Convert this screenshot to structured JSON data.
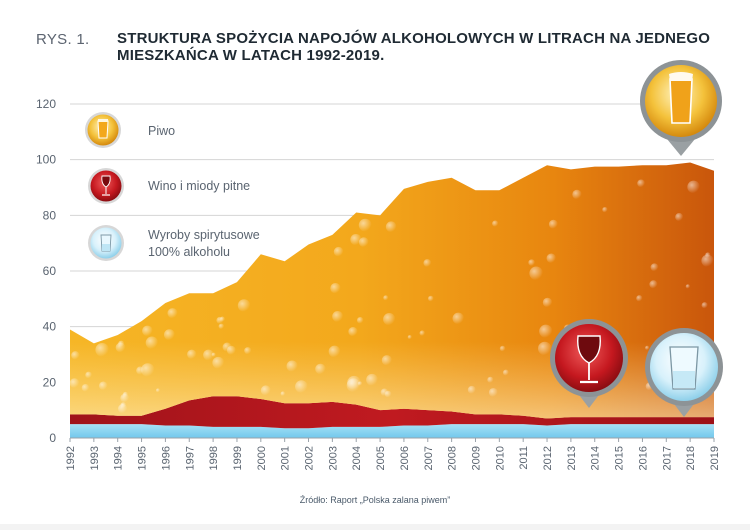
{
  "figure_label": "RYS. 1.",
  "title": {
    "line1": "STRUKTURA SPOŻYCIA NAPOJÓW ALKOHOLOWYCH W LITRACH NA JEDNEGO",
    "line2": "MIESZKAŃCA W LATACH 1992-2019."
  },
  "legend": [
    {
      "lines": [
        "Piwo"
      ],
      "icon": "beer-glass-icon"
    },
    {
      "lines": [
        "Wino i miody pitne"
      ],
      "icon": "wine-glass-icon"
    },
    {
      "lines": [
        "Wyroby spirytusowe",
        "100% alkoholu"
      ],
      "icon": "spirits-glass-icon"
    }
  ],
  "source": "Źródło: Raport „Polska zalana piwem”",
  "colors": {
    "beer": "#f3a81c",
    "beer_deep": "#d8650c",
    "wine": "#b3151c",
    "spirits": "#8fd6f1",
    "grid": "#d5d5d5",
    "axis_text": "#5a6470"
  },
  "chart_data": {
    "type": "area",
    "stacked": true,
    "x": [
      1992,
      1993,
      1994,
      1995,
      1996,
      1997,
      1998,
      1999,
      2000,
      2001,
      2002,
      2003,
      2004,
      2005,
      2006,
      2007,
      2008,
      2009,
      2010,
      2011,
      2012,
      2013,
      2014,
      2015,
      2016,
      2017,
      2018,
      2019
    ],
    "ylim": [
      0,
      120
    ],
    "yticks": [
      0,
      20,
      40,
      60,
      80,
      100,
      120
    ],
    "series": [
      {
        "name": "Wyroby spirytusowe 100% alkoholu",
        "color_key": "spirits",
        "values": [
          5,
          5,
          5,
          5,
          4.5,
          4.5,
          4,
          4,
          4,
          3.5,
          3.5,
          4,
          4,
          4,
          4.5,
          4.5,
          5,
          5,
          5,
          5,
          4.5,
          5,
          5,
          5,
          5,
          5,
          5,
          5
        ]
      },
      {
        "name": "Wino i miody pitne",
        "color_key": "wine",
        "values": [
          3.5,
          3.5,
          3,
          3,
          6,
          9,
          11,
          11,
          10,
          9,
          9,
          9,
          8,
          6,
          6,
          5.5,
          4.5,
          3.5,
          3.5,
          3,
          2.5,
          2.5,
          2.5,
          2.5,
          2.5,
          2.5,
          2.5,
          2.5
        ]
      },
      {
        "name": "Piwo",
        "color_key": "beer",
        "values": [
          30.5,
          25.5,
          29,
          34,
          38,
          38.5,
          37,
          41,
          52,
          51,
          57,
          60,
          69,
          70,
          79,
          82,
          84,
          80.5,
          80.5,
          85.5,
          91,
          89,
          90,
          90,
          90.5,
          90.5,
          91.5,
          88.5
        ]
      }
    ]
  }
}
